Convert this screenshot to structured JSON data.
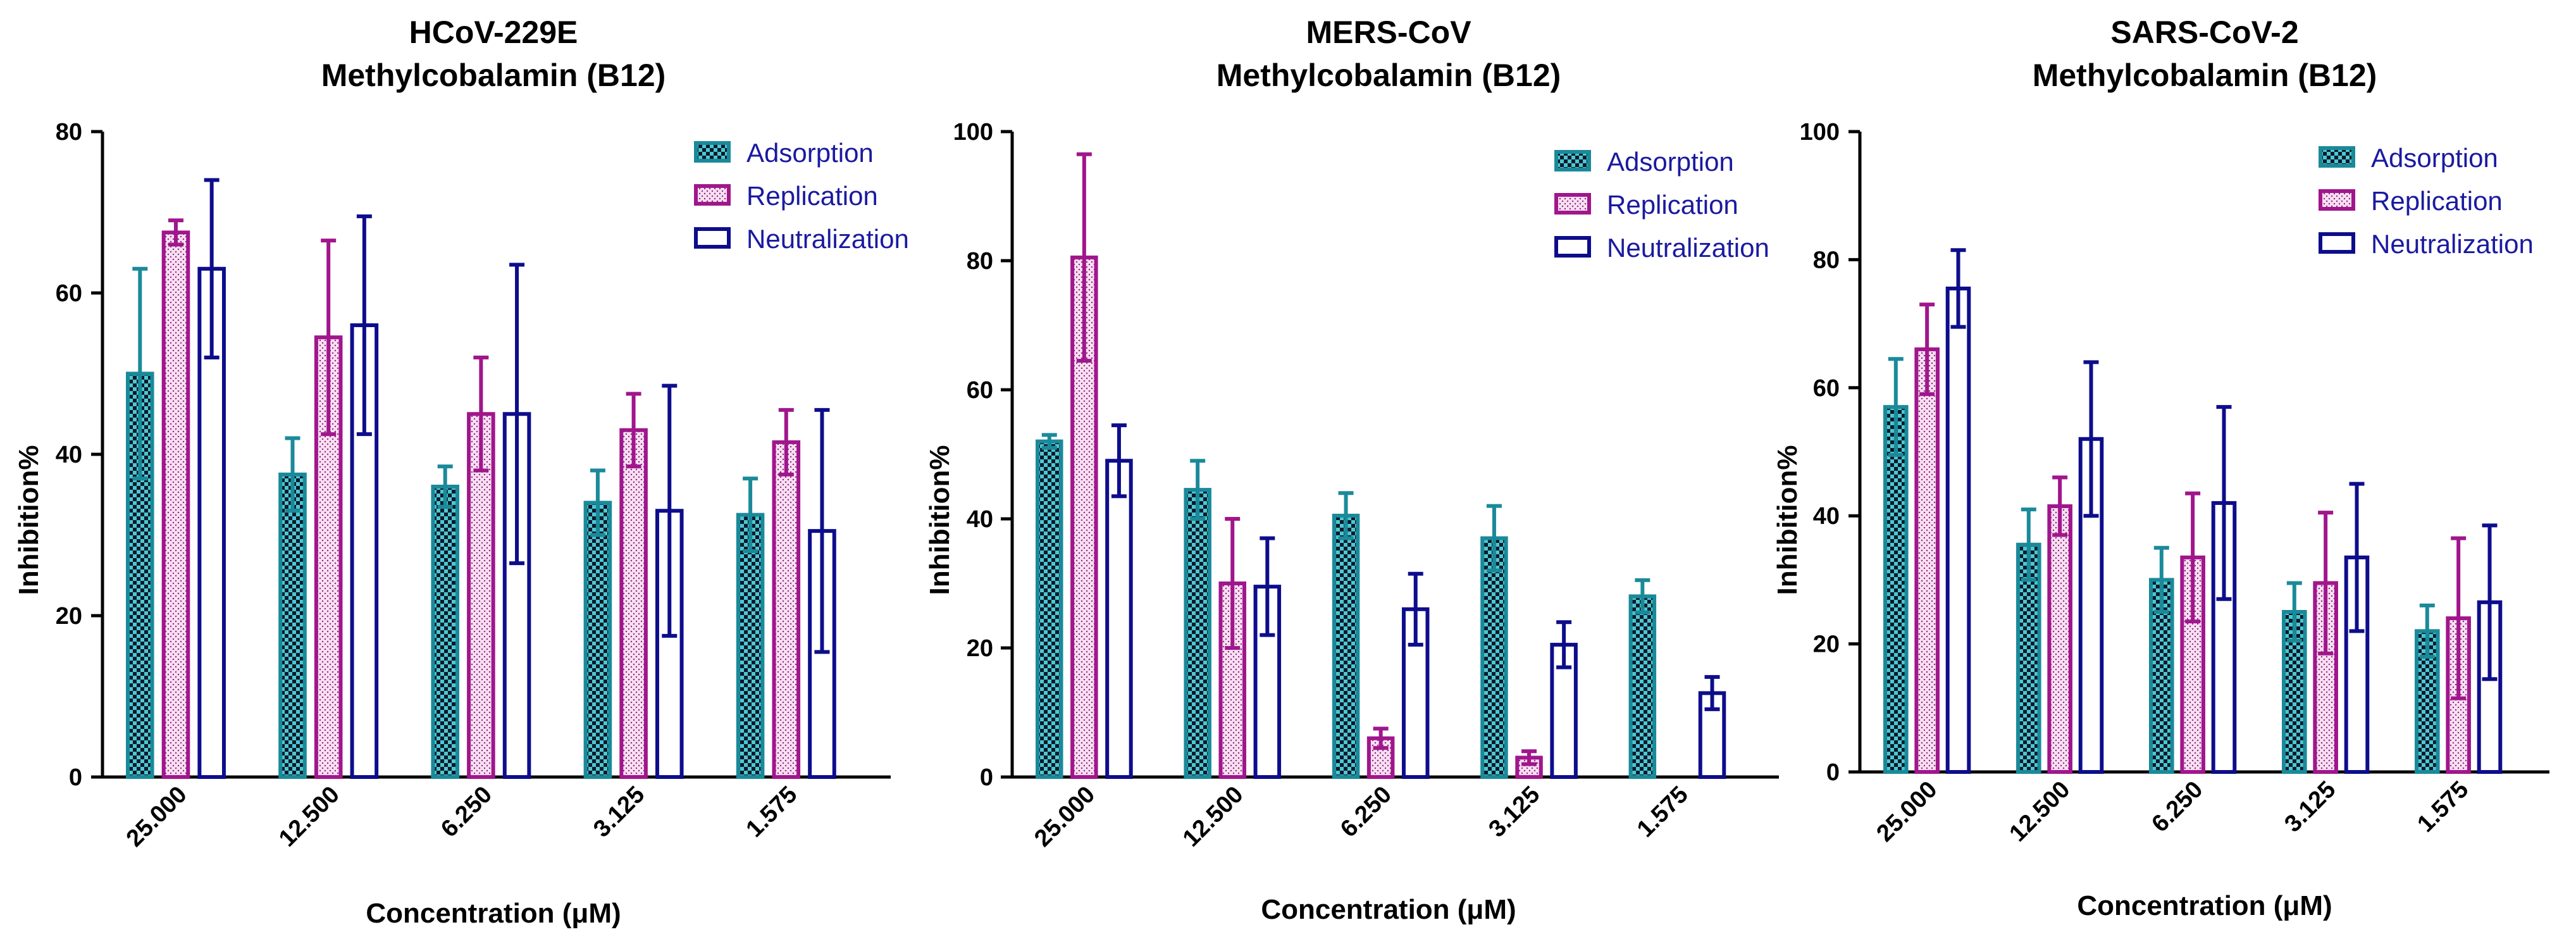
{
  "colors": {
    "adsorption": "#1a8a9a",
    "replication": "#a0168c",
    "neutralization": "#0d0d8c",
    "replication_fill": "#f7d8f0",
    "text_series": "#1a1aa0"
  },
  "chart_data": [
    {
      "type": "bar",
      "title_line1": "HCoV-229E",
      "title_line2": "Methylcobalamin (B12)",
      "xlabel": "Concentration (μM)",
      "ylabel": "Inhibition%",
      "ylim": [
        0,
        80
      ],
      "yticks": [
        "0",
        "20",
        "40",
        "60",
        "80"
      ],
      "categories": [
        "25.000",
        "12.500",
        "6.250",
        "3.125",
        "1.575"
      ],
      "series": [
        {
          "name": "Adsorption",
          "values": [
            50,
            37.5,
            36,
            34,
            32.5
          ],
          "errors": [
            13,
            4.5,
            2.5,
            4,
            4.5
          ]
        },
        {
          "name": "Replication",
          "values": [
            67.5,
            54.5,
            45,
            43,
            41.5
          ],
          "errors": [
            1.5,
            12,
            7,
            4.5,
            4
          ]
        },
        {
          "name": "Neutralization",
          "values": [
            63,
            56,
            45,
            33,
            30.5
          ],
          "errors": [
            11,
            13.5,
            18.5,
            15.5,
            15
          ]
        }
      ]
    },
    {
      "type": "bar",
      "title_line1": "MERS-CoV",
      "title_line2": "Methylcobalamin (B12)",
      "xlabel": "Concentration (μM)",
      "ylabel": "Inhibition%",
      "ylim": [
        0,
        100
      ],
      "yticks": [
        "0",
        "20",
        "40",
        "60",
        "80",
        "100"
      ],
      "categories": [
        "25.000",
        "12.500",
        "6.250",
        "3.125",
        "1.575"
      ],
      "series": [
        {
          "name": "Adsorption",
          "values": [
            52,
            44.5,
            40.5,
            37,
            28
          ],
          "errors": [
            1,
            4.5,
            3.5,
            5,
            2.5
          ]
        },
        {
          "name": "Replication",
          "values": [
            80.5,
            30,
            6,
            3,
            0
          ],
          "errors": [
            16,
            10,
            1.5,
            1,
            0
          ]
        },
        {
          "name": "Neutralization",
          "values": [
            49,
            29.5,
            26,
            20.5,
            13
          ],
          "errors": [
            5.5,
            7.5,
            5.5,
            3.5,
            2.5
          ]
        }
      ]
    },
    {
      "type": "bar",
      "title_line1": "SARS-CoV-2",
      "title_line2": "Methylcobalamin (B12)",
      "xlabel": "Concentration (μM)",
      "ylabel": "Inhibition%",
      "ylim": [
        0,
        100
      ],
      "yticks": [
        "0",
        "20",
        "40",
        "60",
        "80",
        "100"
      ],
      "categories": [
        "25.000",
        "12.500",
        "6.250",
        "3.125",
        "1.575"
      ],
      "series": [
        {
          "name": "Adsorption",
          "values": [
            57,
            35.5,
            30,
            25,
            22
          ],
          "errors": [
            7.5,
            5.5,
            5,
            4.5,
            4
          ]
        },
        {
          "name": "Replication",
          "values": [
            66,
            41.5,
            33.5,
            29.5,
            24
          ],
          "errors": [
            7,
            4.5,
            10,
            11,
            12.5
          ]
        },
        {
          "name": "Neutralization",
          "values": [
            75.5,
            52,
            42,
            33.5,
            26.5
          ],
          "errors": [
            6,
            12,
            15,
            11.5,
            12
          ]
        }
      ]
    }
  ]
}
